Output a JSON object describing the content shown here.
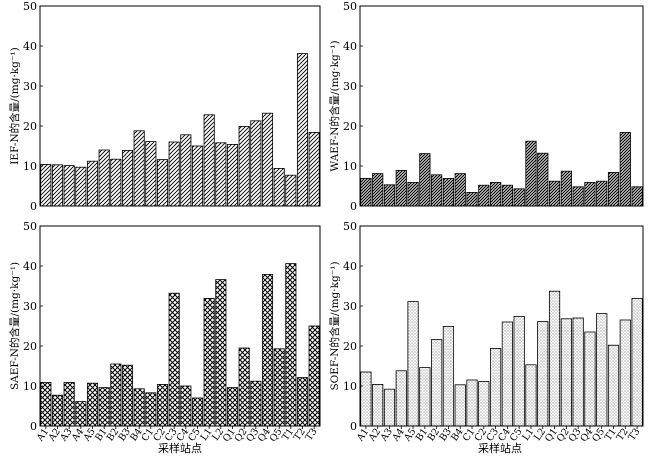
{
  "figure": {
    "x_axis_title": "采样站点",
    "sites": [
      "A1",
      "A2",
      "A3",
      "A4",
      "A5",
      "B1",
      "B2",
      "B3",
      "B4",
      "C1",
      "C2",
      "C3",
      "C4",
      "C5",
      "L1",
      "L2",
      "Q1",
      "Q2",
      "Q3",
      "Q4",
      "Q5",
      "T1",
      "T2",
      "T3"
    ]
  },
  "chart_data": [
    {
      "type": "bar",
      "panel": "top-left",
      "ylabel": "IEF-N的含量/(mg·kg⁻¹)",
      "ylim": [
        0,
        50
      ],
      "yticks": [
        0,
        10,
        20,
        30,
        40,
        50
      ],
      "xticks_shown": false,
      "pattern": "diagonal",
      "categories": [
        "A1",
        "A2",
        "A3",
        "A4",
        "A5",
        "B1",
        "B2",
        "B3",
        "B4",
        "C1",
        "C2",
        "C3",
        "C4",
        "C5",
        "L1",
        "L2",
        "Q1",
        "Q2",
        "Q3",
        "Q4",
        "Q5",
        "T1",
        "T2",
        "T3"
      ],
      "values": [
        10.4,
        10.3,
        10.1,
        9.7,
        11.2,
        14.0,
        11.7,
        13.9,
        18.8,
        16.1,
        11.6,
        16.0,
        17.8,
        15.0,
        22.8,
        15.8,
        15.4,
        19.9,
        21.3,
        23.2,
        9.4,
        7.7,
        38.1,
        18.4
      ]
    },
    {
      "type": "bar",
      "panel": "top-right",
      "ylabel": "WAEF-N的含量/(mg·kg⁻¹)",
      "ylim": [
        0,
        50
      ],
      "yticks": [
        0,
        10,
        20,
        30,
        40,
        50
      ],
      "xticks_shown": false,
      "pattern": "diagonal-dark",
      "categories": [
        "A1",
        "A2",
        "A3",
        "A4",
        "A5",
        "B1",
        "B2",
        "B3",
        "B4",
        "C1",
        "C2",
        "C3",
        "C4",
        "C5",
        "L1",
        "L2",
        "Q1",
        "Q2",
        "Q3",
        "Q4",
        "Q5",
        "T1",
        "T2",
        "T3"
      ],
      "values": [
        6.9,
        8.1,
        5.3,
        8.9,
        5.9,
        13.1,
        7.8,
        6.9,
        8.1,
        3.4,
        5.2,
        5.9,
        5.2,
        4.3,
        16.2,
        13.2,
        6.2,
        8.7,
        4.8,
        5.9,
        6.2,
        8.4,
        18.4,
        4.8
      ]
    },
    {
      "type": "bar",
      "panel": "bottom-left",
      "ylabel": "SAEF-N的含量/(mg·kg⁻¹)",
      "ylim": [
        0,
        50
      ],
      "yticks": [
        0,
        10,
        20,
        30,
        40,
        50
      ],
      "xticks_shown": true,
      "pattern": "crosshatch",
      "categories": [
        "A1",
        "A2",
        "A3",
        "A4",
        "A5",
        "B1",
        "B2",
        "B3",
        "B4",
        "C1",
        "C2",
        "C3",
        "C4",
        "C5",
        "L1",
        "L2",
        "Q1",
        "Q2",
        "Q3",
        "Q4",
        "Q5",
        "T1",
        "T2",
        "T3"
      ],
      "values": [
        10.9,
        7.7,
        10.9,
        6.1,
        10.7,
        9.6,
        15.5,
        15.2,
        9.3,
        8.3,
        10.4,
        33.2,
        10.0,
        7.0,
        31.9,
        36.6,
        9.6,
        19.5,
        11.2,
        37.9,
        19.3,
        40.6,
        12.1,
        25.0
      ]
    },
    {
      "type": "bar",
      "panel": "bottom-right",
      "ylabel": "SOEF-N的含量/(mg·kg⁻¹)",
      "ylim": [
        0,
        50
      ],
      "yticks": [
        0,
        10,
        20,
        30,
        40,
        50
      ],
      "xticks_shown": true,
      "pattern": "dotted",
      "categories": [
        "A1",
        "A2",
        "A3",
        "A4",
        "A5",
        "B1",
        "B2",
        "B3",
        "B4",
        "C1",
        "C2",
        "C3",
        "C4",
        "C5",
        "L1",
        "L2",
        "Q1",
        "Q2",
        "Q3",
        "Q4",
        "Q5",
        "T1",
        "T2",
        "T3"
      ],
      "values": [
        13.5,
        10.4,
        9.2,
        13.8,
        31.1,
        14.6,
        21.6,
        24.9,
        10.3,
        11.5,
        11.1,
        19.4,
        26.0,
        27.4,
        15.3,
        26.1,
        33.7,
        26.8,
        27.0,
        23.5,
        28.1,
        20.2,
        26.5,
        31.9
      ]
    }
  ]
}
